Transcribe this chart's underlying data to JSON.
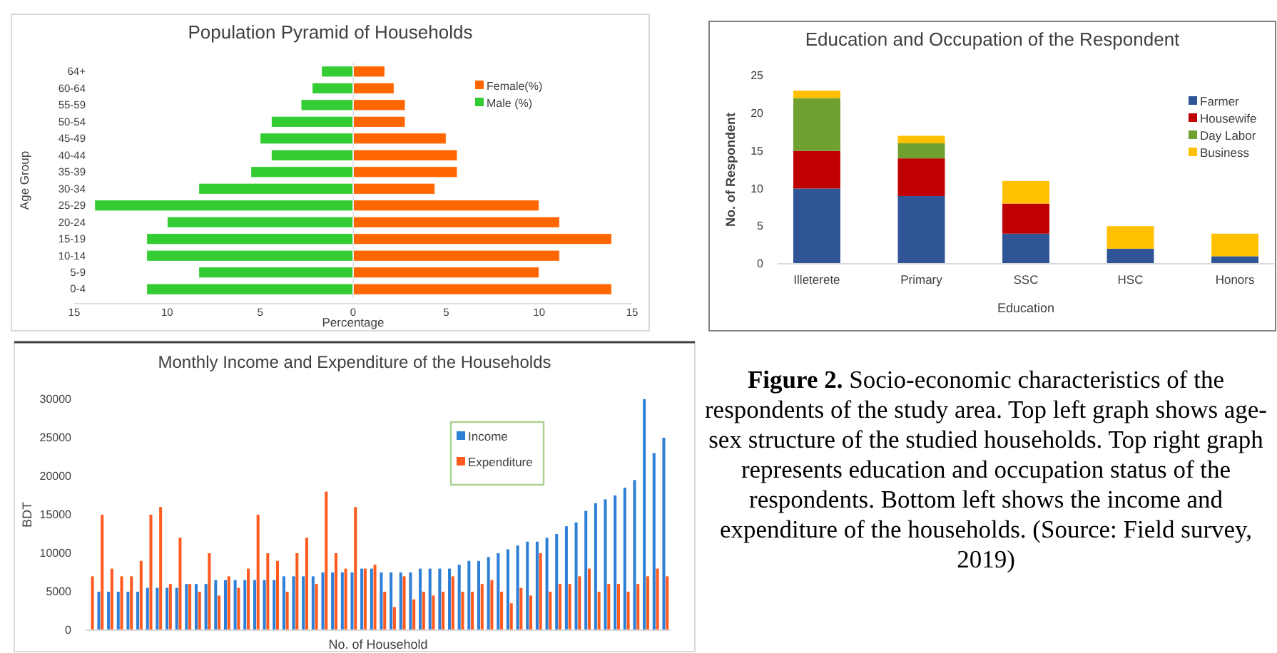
{
  "chart_data": [
    {
      "type": "bar",
      "orientation": "horizontal",
      "stacked": true,
      "title": "Population Pyramid of Households",
      "xlabel": "Percentage",
      "ylabel": "Age Group",
      "categories": [
        "64+",
        "60-64",
        "55-59",
        "50-54",
        "45-49",
        "40-44",
        "35-39",
        "30-34",
        "25-29",
        "20-24",
        "15-19",
        "10-14",
        "5-9",
        "0-4"
      ],
      "series": [
        {
          "name": "Female(%)",
          "color": "#ff6600",
          "values": [
            1.7,
            2.2,
            2.8,
            2.8,
            5,
            5.6,
            5.6,
            4.4,
            10,
            11.1,
            13.9,
            11.1,
            10,
            13.9
          ]
        },
        {
          "name": "Male (%)",
          "color": "#33cc33",
          "values": [
            -1.7,
            -2.2,
            -2.8,
            -4.4,
            -5,
            -4.4,
            -5.5,
            -8.3,
            -13.9,
            -10,
            -11.1,
            -11.1,
            -8.3,
            -11.1
          ]
        }
      ],
      "xlim": [
        -15,
        15
      ],
      "xticks": [
        {
          "value": -15,
          "label": "15"
        },
        {
          "value": -10,
          "label": "10"
        },
        {
          "value": -5,
          "label": "5"
        },
        0,
        5,
        10,
        15
      ],
      "legend": "top right"
    },
    {
      "type": "bar",
      "stacked": true,
      "title": "Education and Occupation of the Respondent",
      "xlabel": "Education",
      "ylabel": "No. of Respondent",
      "categories": [
        "Illeterete",
        "Primary",
        "SSC",
        "HSC",
        "Honors"
      ],
      "series": [
        {
          "name": "Farmer",
          "color": "#2f5597",
          "values": [
            10,
            9,
            4,
            2,
            1
          ]
        },
        {
          "name": "Housewife",
          "color": "#c00000",
          "values": [
            5,
            5,
            4,
            0,
            0
          ]
        },
        {
          "name": "Day Labor",
          "color": "#70a030",
          "values": [
            7,
            2,
            0,
            0,
            0
          ]
        },
        {
          "name": "Business",
          "color": "#ffc000",
          "values": [
            1,
            1,
            3,
            3,
            3
          ]
        }
      ],
      "ylim": [
        0,
        25
      ],
      "yticks": [
        0,
        5,
        10,
        15,
        20,
        25
      ],
      "legend": "right"
    },
    {
      "type": "bar",
      "title": "Monthly Income and Expenditure of the Households",
      "xlabel": "No. of Household",
      "ylabel": "BDT",
      "categories": [
        null,
        null,
        null,
        null,
        null,
        null,
        null,
        null,
        null,
        null,
        null,
        null,
        null,
        null,
        null,
        null,
        null,
        null,
        null,
        null,
        null,
        null,
        null,
        null,
        null,
        null,
        null,
        null,
        null,
        null,
        null,
        null,
        null,
        null,
        null,
        null,
        null,
        null,
        null,
        null,
        null,
        null,
        null,
        null,
        null,
        null,
        null,
        null,
        null,
        null,
        null,
        null,
        null,
        null,
        null,
        null,
        null,
        null,
        null,
        null
      ],
      "series": [
        {
          "name": "Income",
          "color": "#2e7fd6",
          "values": [
            null,
            5000,
            5000,
            5000,
            5000,
            5000,
            5500,
            5500,
            5500,
            5500,
            6000,
            6000,
            6000,
            6500,
            6500,
            6500,
            6500,
            6500,
            6500,
            6500,
            7000,
            7000,
            7000,
            7000,
            7500,
            7500,
            7500,
            7500,
            8000,
            8000,
            7500,
            7500,
            7500,
            7500,
            8000,
            8000,
            8000,
            8000,
            8500,
            9000,
            9000,
            9500,
            10000,
            10500,
            11000,
            11500,
            11500,
            12000,
            12500,
            13500,
            14000,
            15500,
            16500,
            17000,
            17500,
            18500,
            19500,
            30000,
            23000,
            25000
          ]
        },
        {
          "name": "Expenditure",
          "color": "#ff5a1f",
          "values": [
            7000,
            15000,
            8000,
            7000,
            7000,
            9000,
            15000,
            16000,
            6000,
            12000,
            6000,
            5000,
            10000,
            4500,
            7000,
            5500,
            8000,
            15000,
            10000,
            9000,
            5000,
            10000,
            12000,
            6000,
            18000,
            10000,
            8000,
            16000,
            8000,
            8500,
            5000,
            3000,
            7000,
            4000,
            5000,
            4500,
            5000,
            7000,
            5000,
            5000,
            6000,
            6500,
            5000,
            3500,
            5500,
            4500,
            10000,
            5000,
            6000,
            6000,
            7000,
            8000,
            5000,
            6000,
            6000,
            5000,
            6000,
            7000,
            8000,
            7000
          ]
        }
      ],
      "ylim": [
        0,
        30000
      ],
      "yticks": [
        0,
        5000,
        10000,
        15000,
        20000,
        25000,
        30000
      ],
      "legend": "top right"
    },
    {
      "type": "other",
      "annotations": [
        "Figure 2.",
        "Socio-economic characteristics of the respondents of the study area. Top left graph shows age-sex structure of the studied households. Top right graph represents education and occupation status of the respondents. Bottom left shows the income and expenditure of the households. (Source: Field survey, 2019)"
      ]
    }
  ]
}
